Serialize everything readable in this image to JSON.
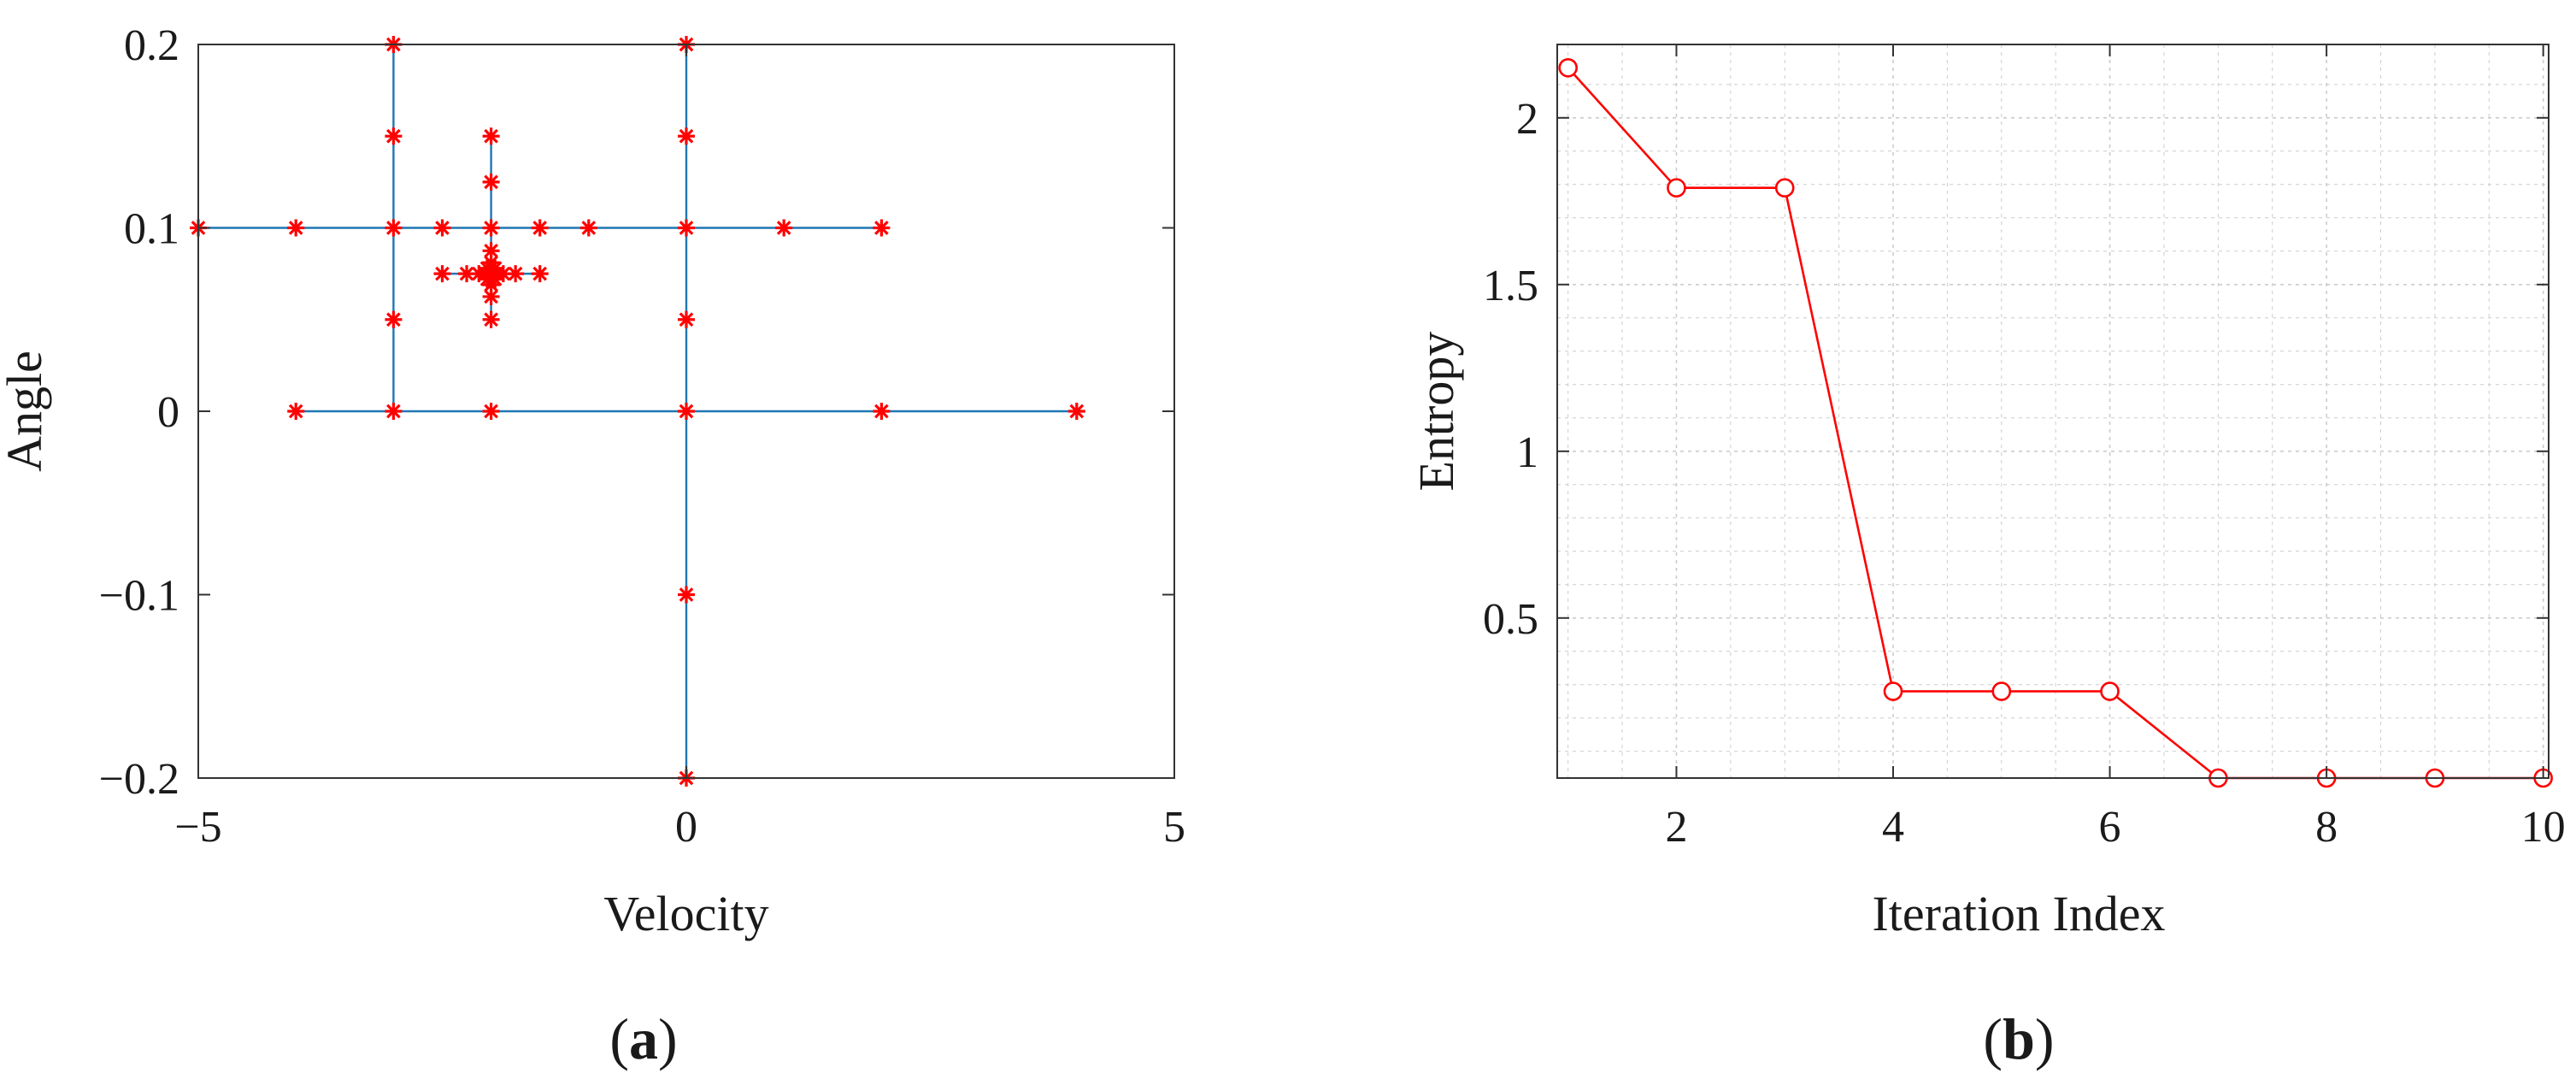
{
  "colors": {
    "mesh_line": "#1f77b4",
    "marker": "#ff0000",
    "axis": "#333333",
    "grid": "#cccccc"
  },
  "panels": {
    "a": {
      "open": "(",
      "letter": "a",
      "close": ")"
    },
    "b": {
      "open": "(",
      "letter": "b",
      "close": ")"
    }
  },
  "chart_data": [
    {
      "id": "a",
      "type": "scatter",
      "xlabel": "Velocity",
      "ylabel": "Angle",
      "xlim": [
        -5,
        5
      ],
      "ylim": [
        -0.2,
        0.2
      ],
      "xticks": [
        -5,
        0,
        5
      ],
      "yticks": [
        -0.2,
        -0.1,
        0,
        0.1,
        0.2
      ],
      "xtick_labels": [
        "−5",
        "0",
        "5"
      ],
      "ytick_labels": [
        "−0.2",
        "−0.1",
        "0",
        "0.1",
        "0.2"
      ],
      "grid": false,
      "segments": [
        {
          "x": [
            -4,
            4
          ],
          "y": [
            0,
            0
          ]
        },
        {
          "x": [
            0,
            0
          ],
          "y": [
            -0.2,
            0.2
          ]
        },
        {
          "x": [
            -5,
            2
          ],
          "y": [
            0.1,
            0.1
          ]
        },
        {
          "x": [
            -3,
            -3
          ],
          "y": [
            0,
            0.2
          ]
        },
        {
          "x": [
            -2.5,
            -1.5
          ],
          "y": [
            0.075,
            0.075
          ]
        },
        {
          "x": [
            -2,
            -2
          ],
          "y": [
            0.05,
            0.15
          ]
        },
        {
          "x": [
            -2.25,
            -1.75
          ],
          "y": [
            0.075,
            0.075
          ]
        },
        {
          "x": [
            -2,
            -2
          ],
          "y": [
            0.0625,
            0.0875
          ]
        }
      ],
      "points": [
        {
          "x": -4,
          "y": 0
        },
        {
          "x": -3,
          "y": 0
        },
        {
          "x": -2,
          "y": 0
        },
        {
          "x": 0,
          "y": 0
        },
        {
          "x": 2,
          "y": 0
        },
        {
          "x": 4,
          "y": 0
        },
        {
          "x": 0,
          "y": -0.2
        },
        {
          "x": 0,
          "y": -0.1
        },
        {
          "x": 0,
          "y": 0.05
        },
        {
          "x": 0,
          "y": 0.1
        },
        {
          "x": 0,
          "y": 0.15
        },
        {
          "x": 0,
          "y": 0.2
        },
        {
          "x": -5,
          "y": 0.1
        },
        {
          "x": -4,
          "y": 0.1
        },
        {
          "x": -3,
          "y": 0.1
        },
        {
          "x": -2.5,
          "y": 0.1
        },
        {
          "x": -2,
          "y": 0.1
        },
        {
          "x": -1.5,
          "y": 0.1
        },
        {
          "x": -1,
          "y": 0.1
        },
        {
          "x": 1,
          "y": 0.1
        },
        {
          "x": 2,
          "y": 0.1
        },
        {
          "x": -3,
          "y": 0.05
        },
        {
          "x": -3,
          "y": 0.15
        },
        {
          "x": -3,
          "y": 0.2
        },
        {
          "x": -2.5,
          "y": 0.075
        },
        {
          "x": -2.25,
          "y": 0.075
        },
        {
          "x": -2.125,
          "y": 0.075
        },
        {
          "x": -2.0625,
          "y": 0.075
        },
        {
          "x": -2,
          "y": 0.075
        },
        {
          "x": -1.9375,
          "y": 0.075
        },
        {
          "x": -1.875,
          "y": 0.075
        },
        {
          "x": -1.75,
          "y": 0.075
        },
        {
          "x": -1.5,
          "y": 0.075
        },
        {
          "x": -2,
          "y": 0.05
        },
        {
          "x": -2,
          "y": 0.0625
        },
        {
          "x": -2,
          "y": 0.069
        },
        {
          "x": -2,
          "y": 0.081
        },
        {
          "x": -2,
          "y": 0.0875
        },
        {
          "x": -2,
          "y": 0.125
        },
        {
          "x": -2,
          "y": 0.15
        },
        {
          "x": -2.04,
          "y": 0.072
        },
        {
          "x": -1.96,
          "y": 0.078
        },
        {
          "x": -2.04,
          "y": 0.078
        },
        {
          "x": -1.96,
          "y": 0.072
        }
      ]
    },
    {
      "id": "b",
      "type": "line",
      "xlabel": "Iteration Index",
      "ylabel": "Entropy",
      "xlim": [
        0.9,
        10.05
      ],
      "ylim": [
        0.02,
        2.22
      ],
      "xticks": [
        2,
        4,
        6,
        8,
        10
      ],
      "yticks": [
        0.5,
        1,
        1.5,
        2
      ],
      "xtick_labels": [
        "2",
        "4",
        "6",
        "8",
        "10"
      ],
      "ytick_labels": [
        "0.5",
        "1",
        "1.5",
        "2"
      ],
      "grid": true,
      "x": [
        1,
        2,
        3,
        4,
        5,
        6,
        7,
        8,
        9,
        10
      ],
      "y": [
        2.15,
        1.79,
        1.79,
        0.28,
        0.28,
        0.28,
        0.02,
        0.02,
        0.02,
        0.02
      ]
    }
  ]
}
